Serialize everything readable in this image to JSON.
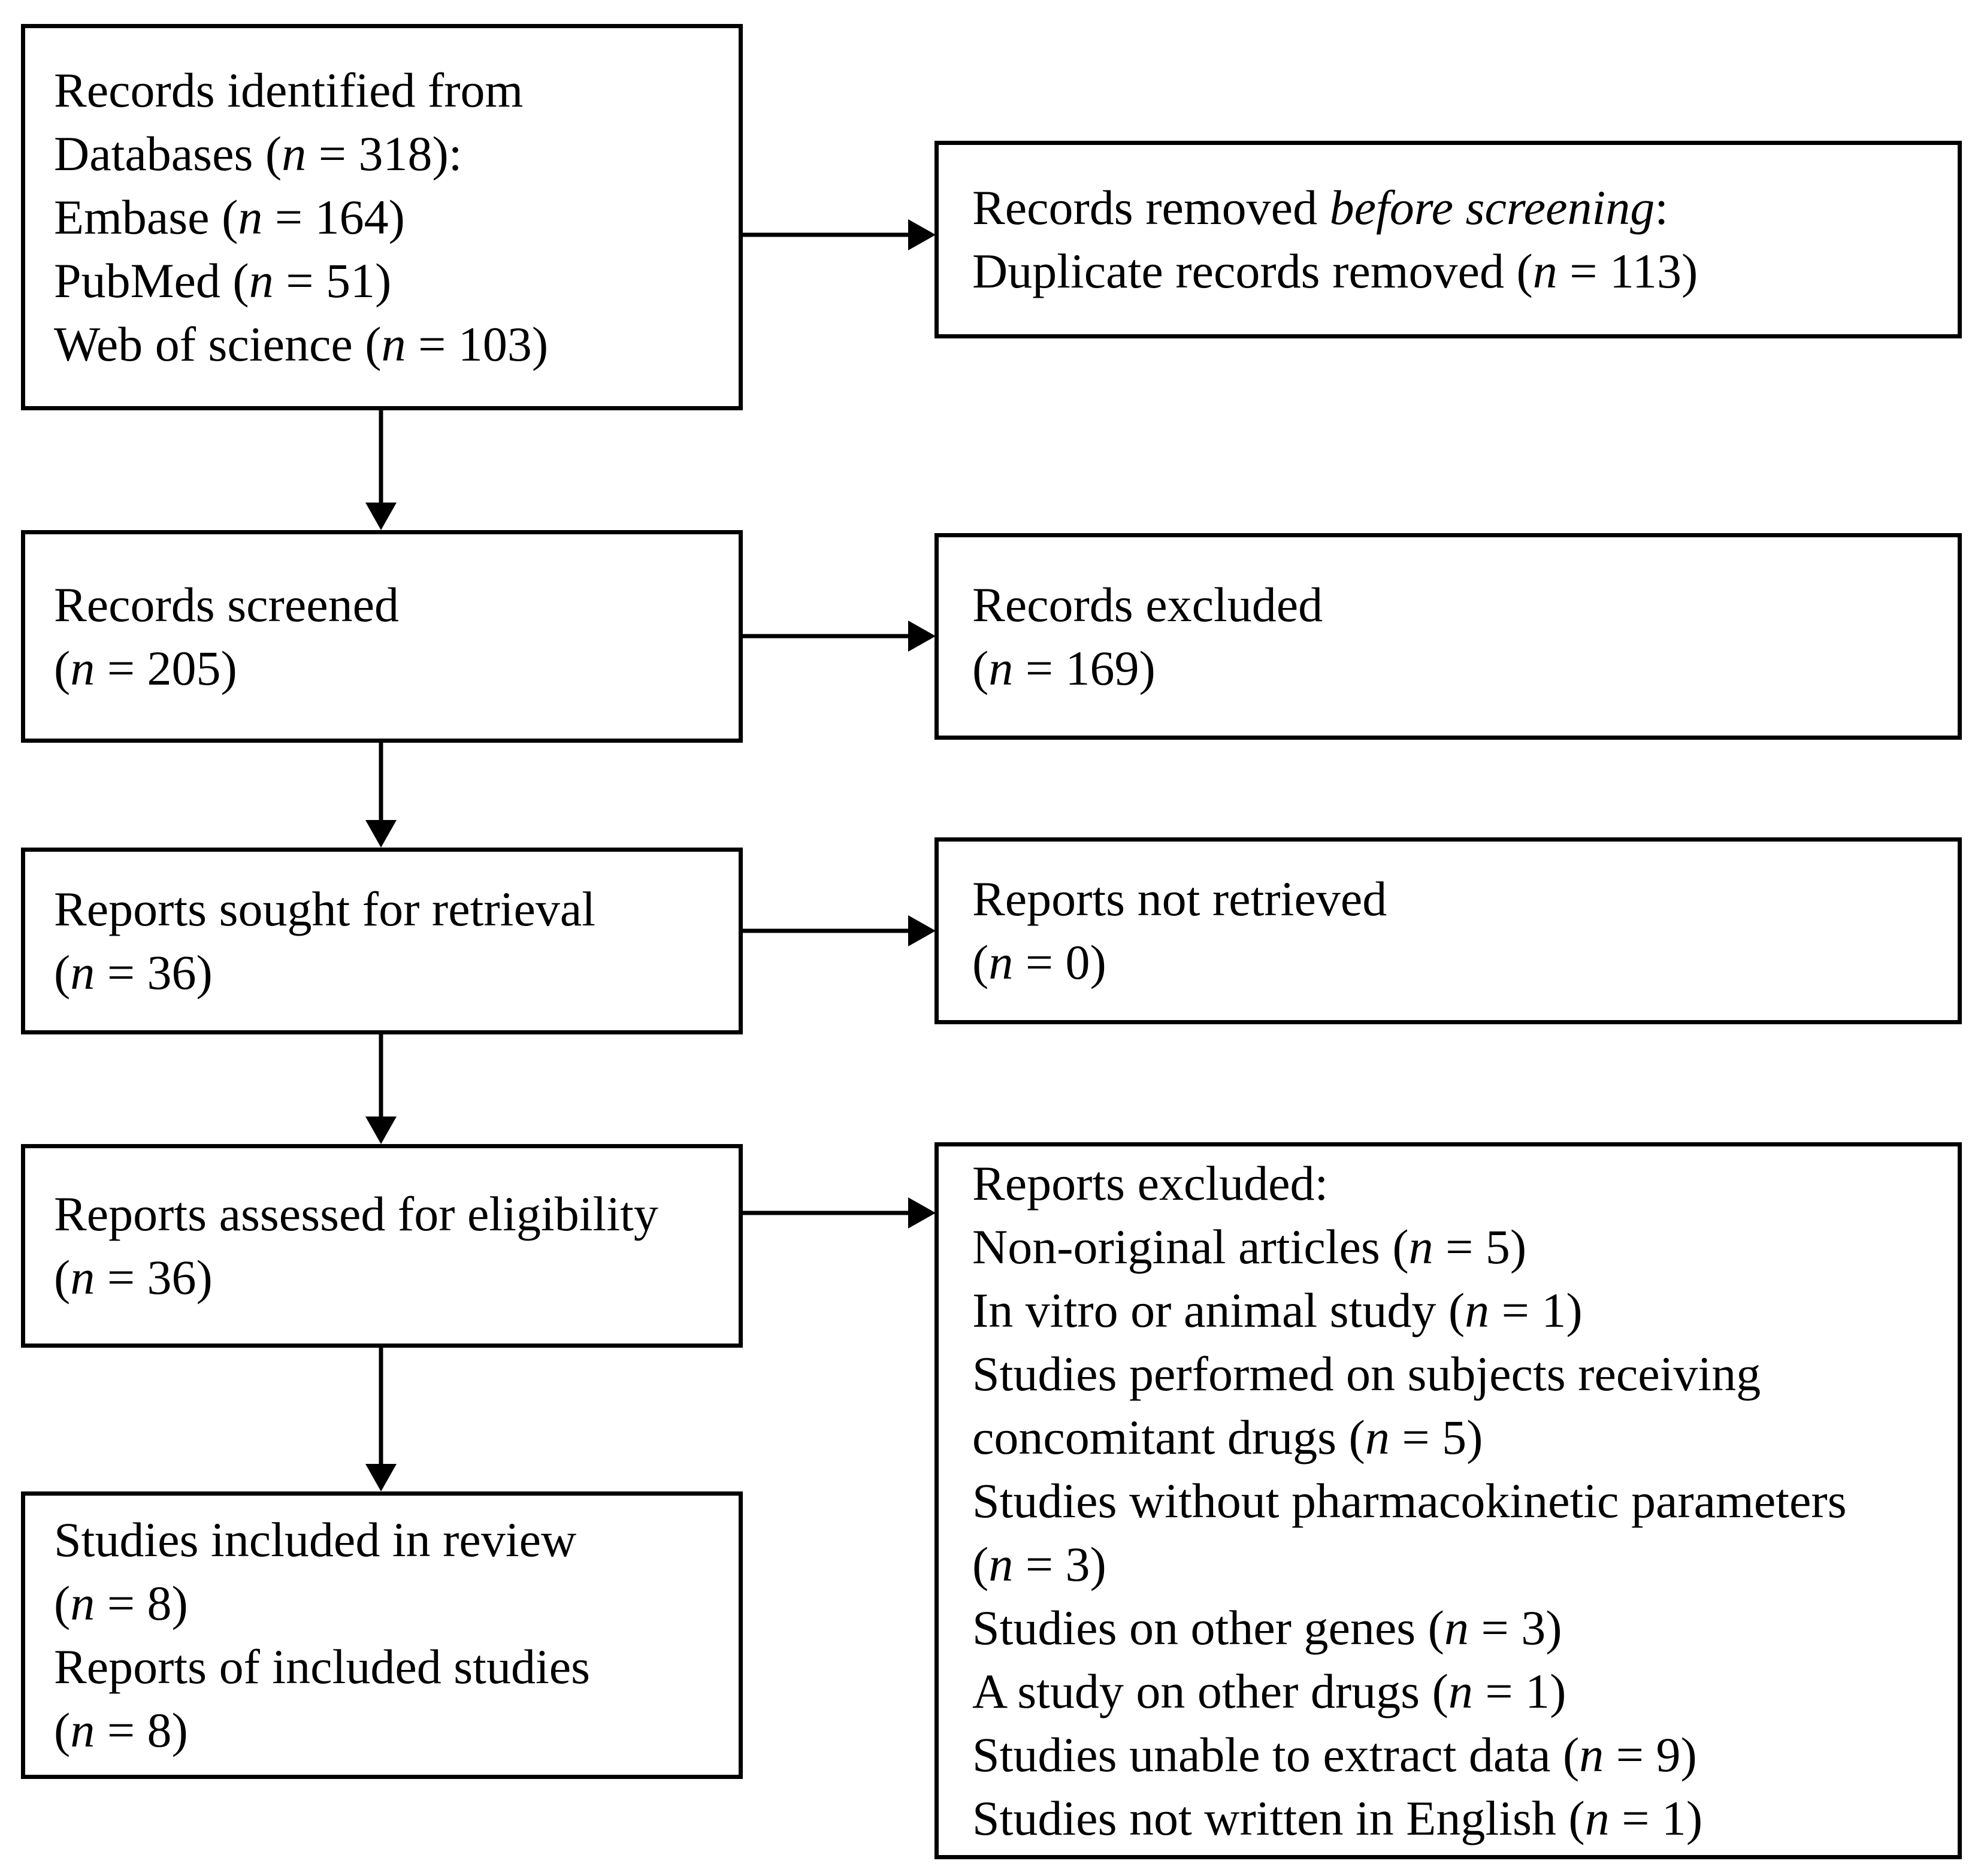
{
  "diagram": {
    "title": "PRISMA study selection flow diagram",
    "colors": {
      "line": "#000000",
      "background": "#ffffff",
      "text": "#000000"
    },
    "boxes": {
      "identification": {
        "lines": [
          [
            {
              "t": "Records identified from"
            }
          ],
          [
            {
              "t": "Databases ("
            },
            {
              "t": "n",
              "i": true
            },
            {
              "t": " = 318):"
            }
          ],
          [
            {
              "t": "Embase ("
            },
            {
              "t": "n",
              "i": true
            },
            {
              "t": " = 164)"
            }
          ],
          [
            {
              "t": "PubMed ("
            },
            {
              "t": "n",
              "i": true
            },
            {
              "t": " = 51)"
            }
          ],
          [
            {
              "t": "Web of science ("
            },
            {
              "t": "n",
              "i": true
            },
            {
              "t": " = 103)"
            }
          ]
        ]
      },
      "duplicates_removed": {
        "lines": [
          [
            {
              "t": "Records removed "
            },
            {
              "t": "before screening",
              "i": true
            },
            {
              "t": ":"
            }
          ],
          [
            {
              "t": "Duplicate records removed ("
            },
            {
              "t": "n",
              "i": true
            },
            {
              "t": " = 113)"
            }
          ]
        ]
      },
      "screened": {
        "lines": [
          [
            {
              "t": "Records screened"
            }
          ],
          [
            {
              "t": "("
            },
            {
              "t": "n",
              "i": true
            },
            {
              "t": " = 205)"
            }
          ]
        ]
      },
      "records_excluded": {
        "lines": [
          [
            {
              "t": "Records excluded"
            }
          ],
          [
            {
              "t": "("
            },
            {
              "t": "n",
              "i": true
            },
            {
              "t": " = 169)"
            }
          ]
        ]
      },
      "sought": {
        "lines": [
          [
            {
              "t": "Reports sought for retrieval"
            }
          ],
          [
            {
              "t": "("
            },
            {
              "t": "n",
              "i": true
            },
            {
              "t": " = 36)"
            }
          ]
        ]
      },
      "not_retrieved": {
        "lines": [
          [
            {
              "t": "Reports not retrieved"
            }
          ],
          [
            {
              "t": "("
            },
            {
              "t": "n",
              "i": true
            },
            {
              "t": " = 0)"
            }
          ]
        ]
      },
      "assessed": {
        "lines": [
          [
            {
              "t": "Reports assessed for eligibility"
            }
          ],
          [
            {
              "t": "("
            },
            {
              "t": "n",
              "i": true
            },
            {
              "t": " = 36)"
            }
          ]
        ]
      },
      "reports_excluded": {
        "lines": [
          [
            {
              "t": "Reports excluded:"
            }
          ],
          [
            {
              "t": "Non-original articles ("
            },
            {
              "t": "n",
              "i": true
            },
            {
              "t": " = 5)"
            }
          ],
          [
            {
              "t": "In vitro or animal study ("
            },
            {
              "t": "n",
              "i": true
            },
            {
              "t": " = 1)"
            }
          ],
          [
            {
              "t": "Studies performed on subjects receiving"
            }
          ],
          [
            {
              "t": "concomitant drugs ("
            },
            {
              "t": "n",
              "i": true
            },
            {
              "t": " = 5)"
            }
          ],
          [
            {
              "t": "Studies without pharmacokinetic parameters"
            }
          ],
          [
            {
              "t": "("
            },
            {
              "t": "n",
              "i": true
            },
            {
              "t": " = 3)"
            }
          ],
          [
            {
              "t": "Studies on other genes ("
            },
            {
              "t": "n",
              "i": true
            },
            {
              "t": " = 3)"
            }
          ],
          [
            {
              "t": "A study on other drugs ("
            },
            {
              "t": "n",
              "i": true
            },
            {
              "t": " = 1)"
            }
          ],
          [
            {
              "t": "Studies unable to extract data ("
            },
            {
              "t": "n",
              "i": true
            },
            {
              "t": " = 9)"
            }
          ],
          [
            {
              "t": "Studies not written in English ("
            },
            {
              "t": "n",
              "i": true
            },
            {
              "t": " = 1)"
            }
          ]
        ]
      },
      "included": {
        "lines": [
          [
            {
              "t": "Studies included in review"
            }
          ],
          [
            {
              "t": "("
            },
            {
              "t": "n",
              "i": true
            },
            {
              "t": " = 8)"
            }
          ],
          [
            {
              "t": "Reports of included studies"
            }
          ],
          [
            {
              "t": "("
            },
            {
              "t": "n",
              "i": true
            },
            {
              "t": " = 8)"
            }
          ]
        ]
      }
    }
  }
}
